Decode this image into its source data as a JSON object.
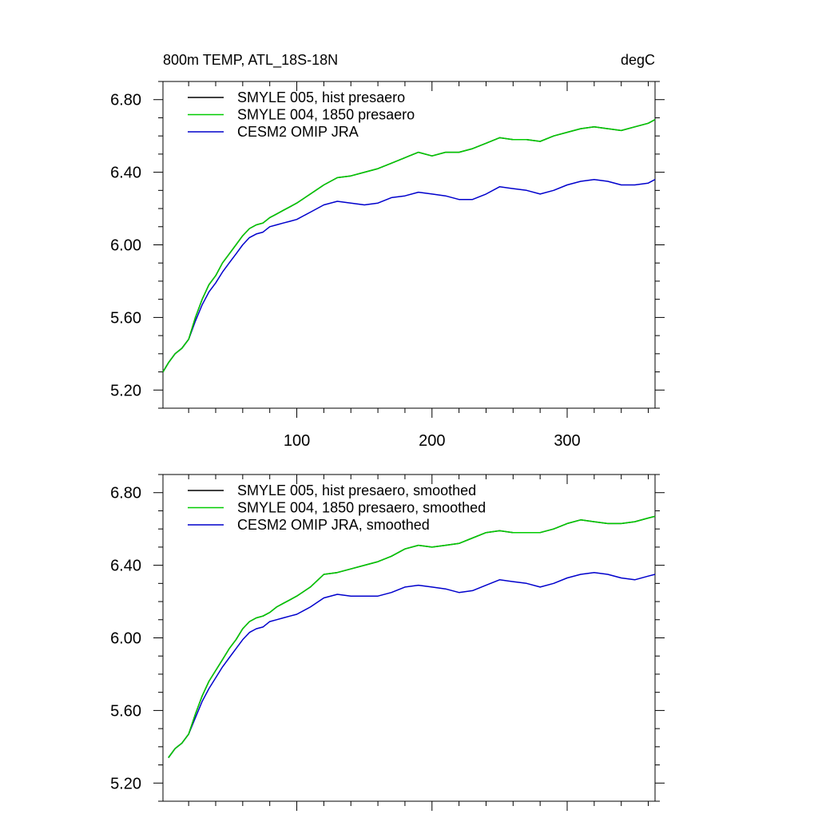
{
  "chart_data": [
    {
      "type": "line",
      "title_left": "800m TEMP, ATL_18S-18N",
      "title_right": "degC",
      "xlim": [
        1,
        365
      ],
      "ylim": [
        5.1,
        6.9
      ],
      "x_ticks": [
        100,
        200,
        300
      ],
      "x_tick_labels": [
        "100",
        "200",
        "300"
      ],
      "y_ticks": [
        5.2,
        5.6,
        6.0,
        6.4,
        6.8
      ],
      "y_tick_labels": [
        "5.20",
        "5.60",
        "6.00",
        "6.40",
        "6.80"
      ],
      "legend_position": "top-left",
      "series": [
        {
          "name": "SMYLE 005, hist presaero",
          "color": "#000000",
          "x": [
            1,
            5,
            10,
            15,
            20,
            25,
            30,
            35,
            40,
            45,
            50,
            55,
            60,
            65,
            70,
            75,
            80,
            85,
            90,
            95,
            100,
            110,
            120,
            130,
            140,
            150,
            160,
            170,
            180,
            190,
            200,
            210,
            220,
            230,
            240,
            250,
            260,
            270,
            280,
            290,
            300,
            310,
            320,
            330,
            340,
            350,
            360,
            365
          ],
          "y": [
            5.3,
            5.35,
            5.4,
            5.43,
            5.48,
            5.6,
            5.7,
            5.78,
            5.83,
            5.9,
            5.95,
            6.0,
            6.05,
            6.09,
            6.11,
            6.12,
            6.15,
            6.17,
            6.19,
            6.21,
            6.23,
            6.28,
            6.33,
            6.37,
            6.38,
            6.4,
            6.42,
            6.45,
            6.48,
            6.51,
            6.49,
            6.51,
            6.51,
            6.53,
            6.56,
            6.59,
            6.58,
            6.58,
            6.57,
            6.6,
            6.62,
            6.64,
            6.65,
            6.64,
            6.63,
            6.65,
            6.67,
            6.69
          ]
        },
        {
          "name": "SMYLE 004, 1850 presaero",
          "color": "#00cc00",
          "x": [
            1,
            5,
            10,
            15,
            20,
            25,
            30,
            35,
            40,
            45,
            50,
            55,
            60,
            65,
            70,
            75,
            80,
            85,
            90,
            95,
            100,
            110,
            120,
            130,
            140,
            150,
            160,
            170,
            180,
            190,
            200,
            210,
            220,
            230,
            240,
            250,
            260,
            270,
            280,
            290,
            300,
            310,
            320,
            330,
            340,
            350,
            360,
            365
          ],
          "y": [
            5.3,
            5.35,
            5.4,
            5.43,
            5.48,
            5.6,
            5.7,
            5.78,
            5.83,
            5.9,
            5.95,
            6.0,
            6.05,
            6.09,
            6.11,
            6.12,
            6.15,
            6.17,
            6.19,
            6.21,
            6.23,
            6.28,
            6.33,
            6.37,
            6.38,
            6.4,
            6.42,
            6.45,
            6.48,
            6.51,
            6.49,
            6.51,
            6.51,
            6.53,
            6.56,
            6.59,
            6.58,
            6.58,
            6.57,
            6.6,
            6.62,
            6.64,
            6.65,
            6.64,
            6.63,
            6.65,
            6.67,
            6.69
          ]
        },
        {
          "name": "CESM2 OMIP JRA",
          "color": "#0000cc",
          "x": [
            1,
            5,
            10,
            15,
            20,
            25,
            30,
            35,
            40,
            45,
            50,
            55,
            60,
            65,
            70,
            75,
            80,
            85,
            90,
            95,
            100,
            110,
            120,
            130,
            140,
            150,
            160,
            170,
            180,
            190,
            200,
            210,
            220,
            230,
            240,
            250,
            260,
            270,
            280,
            290,
            300,
            310,
            320,
            330,
            340,
            350,
            360,
            365
          ],
          "y": [
            5.3,
            5.35,
            5.4,
            5.43,
            5.48,
            5.58,
            5.67,
            5.74,
            5.79,
            5.85,
            5.9,
            5.95,
            6.0,
            6.04,
            6.06,
            6.07,
            6.1,
            6.11,
            6.12,
            6.13,
            6.14,
            6.18,
            6.22,
            6.24,
            6.23,
            6.22,
            6.23,
            6.26,
            6.27,
            6.29,
            6.28,
            6.27,
            6.25,
            6.25,
            6.28,
            6.32,
            6.31,
            6.3,
            6.28,
            6.3,
            6.33,
            6.35,
            6.36,
            6.35,
            6.33,
            6.33,
            6.34,
            6.36
          ]
        }
      ]
    },
    {
      "type": "line",
      "xlim": [
        1,
        365
      ],
      "ylim": [
        5.1,
        6.9
      ],
      "x_ticks": [
        100,
        200,
        300
      ],
      "y_ticks": [
        5.2,
        5.6,
        6.0,
        6.4,
        6.8
      ],
      "y_tick_labels": [
        "5.20",
        "5.60",
        "6.00",
        "6.40",
        "6.80"
      ],
      "legend_position": "top-left",
      "series": [
        {
          "name": "SMYLE 005, hist presaero, smoothed",
          "color": "#000000",
          "x": [
            5,
            10,
            15,
            20,
            25,
            30,
            35,
            40,
            45,
            50,
            55,
            60,
            65,
            70,
            75,
            80,
            85,
            90,
            95,
            100,
            110,
            120,
            130,
            140,
            150,
            160,
            170,
            180,
            190,
            200,
            210,
            220,
            230,
            240,
            250,
            260,
            270,
            280,
            290,
            300,
            310,
            320,
            330,
            340,
            350,
            360,
            365
          ],
          "y": [
            5.34,
            5.39,
            5.42,
            5.47,
            5.58,
            5.68,
            5.76,
            5.82,
            5.88,
            5.94,
            5.99,
            6.05,
            6.09,
            6.11,
            6.12,
            6.14,
            6.17,
            6.19,
            6.21,
            6.23,
            6.28,
            6.35,
            6.36,
            6.38,
            6.4,
            6.42,
            6.45,
            6.49,
            6.51,
            6.5,
            6.51,
            6.52,
            6.55,
            6.58,
            6.59,
            6.58,
            6.58,
            6.58,
            6.6,
            6.63,
            6.65,
            6.64,
            6.63,
            6.63,
            6.64,
            6.66,
            6.67
          ]
        },
        {
          "name": "SMYLE 004, 1850 presaero, smoothed",
          "color": "#00cc00",
          "x": [
            5,
            10,
            15,
            20,
            25,
            30,
            35,
            40,
            45,
            50,
            55,
            60,
            65,
            70,
            75,
            80,
            85,
            90,
            95,
            100,
            110,
            120,
            130,
            140,
            150,
            160,
            170,
            180,
            190,
            200,
            210,
            220,
            230,
            240,
            250,
            260,
            270,
            280,
            290,
            300,
            310,
            320,
            330,
            340,
            350,
            360,
            365
          ],
          "y": [
            5.34,
            5.39,
            5.42,
            5.47,
            5.58,
            5.68,
            5.76,
            5.82,
            5.88,
            5.94,
            5.99,
            6.05,
            6.09,
            6.11,
            6.12,
            6.14,
            6.17,
            6.19,
            6.21,
            6.23,
            6.28,
            6.35,
            6.36,
            6.38,
            6.4,
            6.42,
            6.45,
            6.49,
            6.51,
            6.5,
            6.51,
            6.52,
            6.55,
            6.58,
            6.59,
            6.58,
            6.58,
            6.58,
            6.6,
            6.63,
            6.65,
            6.64,
            6.63,
            6.63,
            6.64,
            6.66,
            6.67
          ]
        },
        {
          "name": "CESM2 OMIP JRA, smoothed",
          "color": "#0000cc",
          "x": [
            5,
            10,
            15,
            20,
            25,
            30,
            35,
            40,
            45,
            50,
            55,
            60,
            65,
            70,
            75,
            80,
            85,
            90,
            95,
            100,
            110,
            120,
            130,
            140,
            150,
            160,
            170,
            180,
            190,
            200,
            210,
            220,
            230,
            240,
            250,
            260,
            270,
            280,
            290,
            300,
            310,
            320,
            330,
            340,
            350,
            360,
            365
          ],
          "y": [
            5.34,
            5.39,
            5.42,
            5.47,
            5.56,
            5.65,
            5.72,
            5.78,
            5.84,
            5.89,
            5.94,
            5.99,
            6.03,
            6.05,
            6.06,
            6.09,
            6.1,
            6.11,
            6.12,
            6.13,
            6.17,
            6.22,
            6.24,
            6.23,
            6.23,
            6.23,
            6.25,
            6.28,
            6.29,
            6.28,
            6.27,
            6.25,
            6.26,
            6.29,
            6.32,
            6.31,
            6.3,
            6.28,
            6.3,
            6.33,
            6.35,
            6.36,
            6.35,
            6.33,
            6.32,
            6.34,
            6.35
          ]
        }
      ]
    }
  ]
}
